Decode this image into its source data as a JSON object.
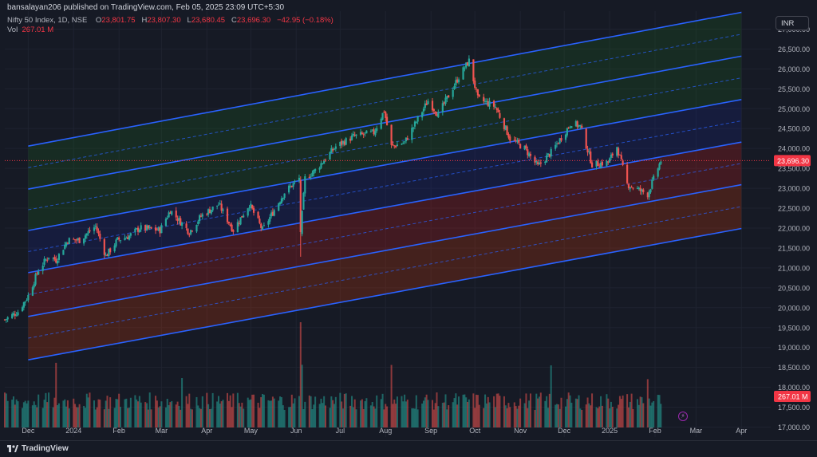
{
  "header": {
    "publisher": "bansalayan206 published on TradingView.com, Feb 05, 2025 23:09 UTC+5:30",
    "symbol": "Nifty 50 Index, 1D, NSE",
    "open_label": "O",
    "open": "23,801.75",
    "high_label": "H",
    "high": "23,807.30",
    "low_label": "L",
    "low": "23,680.45",
    "close_label": "C",
    "close": "23,696.30",
    "change": "−42.95 (−0.18%)",
    "vol_label": "Vol",
    "vol_value": "267.01 M",
    "currency": "INR"
  },
  "footer": {
    "brand": "TradingView"
  },
  "colors": {
    "background": "#161a25",
    "up": "#26a69a",
    "down": "#ef5350",
    "channel_line": "#2962ff",
    "axis_text": "#b2b5be",
    "price_label_bg": "#f23645"
  },
  "icons": {
    "logo": "tradingview-logo-icon",
    "replay": "lightning-icon"
  },
  "chart_data": {
    "type": "candlestick",
    "y_axis": {
      "ticks": [
        "17,000.00",
        "17,500.00",
        "18,000.00",
        "18,500.00",
        "19,000.00",
        "19,500.00",
        "20,000.00",
        "20,500.00",
        "21,000.00",
        "21,500.00",
        "22,000.00",
        "22,500.00",
        "23,000.00",
        "23,500.00",
        "24,000.00",
        "24,500.00",
        "25,000.00",
        "25,500.00",
        "26,000.00",
        "26,500.00",
        "27,000.00"
      ],
      "range": [
        16750,
        27450
      ]
    },
    "x_axis": {
      "ticks": [
        "Dec",
        "2024",
        "Feb",
        "Mar",
        "Apr",
        "May",
        "Jun",
        "Jul",
        "Aug",
        "Sep",
        "Oct",
        "Nov",
        "Dec",
        "2025",
        "Feb",
        "Mar",
        "Apr"
      ],
      "tick_dates": [
        "2023-12-01",
        "2024-01-01",
        "2024-02-01",
        "2024-03-01",
        "2024-04-01",
        "2024-05-01",
        "2024-06-01",
        "2024-07-01",
        "2024-08-01",
        "2024-09-01",
        "2024-10-01",
        "2024-11-01",
        "2024-12-01",
        "2025-01-01",
        "2025-02-01",
        "2025-03-01",
        "2025-04-01"
      ],
      "range": [
        "2023-11-15",
        "2025-04-21"
      ]
    },
    "last_price_label": "23,696.30",
    "last_volume_label": "267.01 M",
    "price_path": [
      [
        "2023-11-15",
        19700
      ],
      [
        "2023-11-24",
        19900
      ],
      [
        "2023-12-01",
        20300
      ],
      [
        "2023-12-08",
        20950
      ],
      [
        "2023-12-15",
        21300
      ],
      [
        "2023-12-20",
        21200
      ],
      [
        "2023-12-28",
        21700
      ],
      [
        "2024-01-05",
        21700
      ],
      [
        "2024-01-16",
        22050
      ],
      [
        "2024-01-23",
        21300
      ],
      [
        "2024-01-31",
        21700
      ],
      [
        "2024-02-08",
        21800
      ],
      [
        "2024-02-15",
        22000
      ],
      [
        "2024-02-29",
        21950
      ],
      [
        "2024-03-07",
        22450
      ],
      [
        "2024-03-20",
        21900
      ],
      [
        "2024-03-28",
        22300
      ],
      [
        "2024-04-09",
        22600
      ],
      [
        "2024-04-19",
        21950
      ],
      [
        "2024-04-30",
        22600
      ],
      [
        "2024-05-09",
        21950
      ],
      [
        "2024-05-24",
        22900
      ],
      [
        "2024-06-03",
        23250
      ],
      [
        "2024-06-04",
        21900
      ],
      [
        "2024-06-07",
        23250
      ],
      [
        "2024-06-14",
        23450
      ],
      [
        "2024-06-28",
        24050
      ],
      [
        "2024-07-10",
        24300
      ],
      [
        "2024-07-24",
        24400
      ],
      [
        "2024-07-31",
        24950
      ],
      [
        "2024-08-05",
        24050
      ],
      [
        "2024-08-14",
        24150
      ],
      [
        "2024-08-30",
        25200
      ],
      [
        "2024-09-06",
        24850
      ],
      [
        "2024-09-20",
        25800
      ],
      [
        "2024-09-27",
        26200
      ],
      [
        "2024-10-03",
        25250
      ],
      [
        "2024-10-15",
        25050
      ],
      [
        "2024-10-25",
        24250
      ],
      [
        "2024-11-04",
        24000
      ],
      [
        "2024-11-13",
        23550
      ],
      [
        "2024-11-22",
        23900
      ],
      [
        "2024-12-06",
        24650
      ],
      [
        "2024-12-12",
        24550
      ],
      [
        "2024-12-20",
        23600
      ],
      [
        "2024-12-31",
        23650
      ],
      [
        "2025-01-06",
        24050
      ],
      [
        "2025-01-13",
        23100
      ],
      [
        "2025-01-27",
        22850
      ],
      [
        "2025-02-05",
        23700
      ]
    ],
    "volume_levels": {
      "typical": "2.5M–4.5M",
      "peaks": [
        "2023-12-20",
        "2024-03-15",
        "2024-06-04",
        "2024-06-05",
        "2024-08-05",
        "2024-11-22",
        "2025-01-27"
      ]
    },
    "channels": {
      "description": "Parallel regression channel lines",
      "start_date": "2023-12-01",
      "end_date": "2025-04-01",
      "lines_solid": [
        {
          "start": 24060,
          "end": 27420
        },
        {
          "start": 22980,
          "end": 26320
        },
        {
          "start": 21940,
          "end": 25230
        },
        {
          "start": 20880,
          "end": 24160
        },
        {
          "start": 19780,
          "end": 23090
        },
        {
          "start": 18690,
          "end": 21990
        }
      ],
      "bands": [
        {
          "from": 0,
          "to": 1,
          "fill": "#1b5e20"
        },
        {
          "from": 1,
          "to": 2,
          "fill": "#1b5e20"
        },
        {
          "from": 2,
          "to": 3,
          "fill": "#1a237e"
        },
        {
          "from": 3,
          "to": 4,
          "fill": "#b71c1c"
        },
        {
          "from": 4,
          "to": 5,
          "fill": "#bf360c"
        }
      ]
    }
  }
}
